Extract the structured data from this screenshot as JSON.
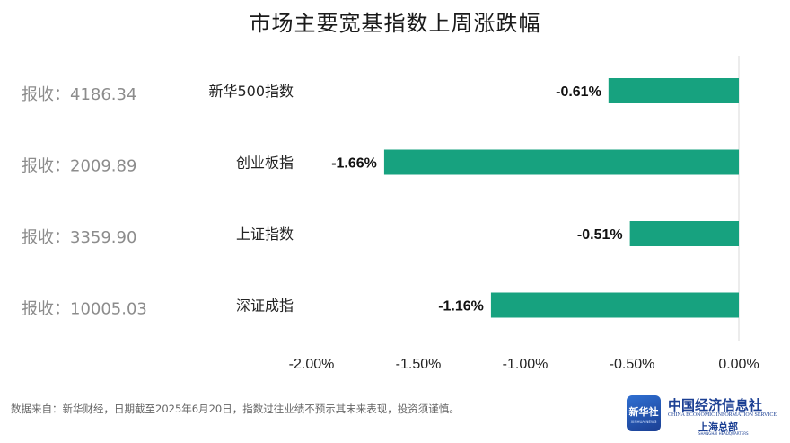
{
  "chart_data": {
    "type": "bar",
    "orientation": "horizontal",
    "title": "市场主要宽基指数上周涨跌幅",
    "categories": [
      "新华500指数",
      "创业板指",
      "上证指数",
      "深证成指"
    ],
    "values": [
      -0.61,
      -1.66,
      -0.51,
      -1.16
    ],
    "value_labels": [
      "-0.61%",
      "-1.66%",
      "-0.51%",
      "-1.16%"
    ],
    "closing_labels": [
      "报收：4186.34",
      "报收：2009.89",
      "报收：3359.90",
      "报收：10005.03"
    ],
    "xlim": [
      -2.0,
      0.0
    ],
    "xticks": [
      -2.0,
      -1.5,
      -1.0,
      -0.5,
      0.0
    ],
    "xtick_labels": [
      "-2.00%",
      "-1.50%",
      "-1.00%",
      "-0.50%",
      "0.00%"
    ],
    "grid": false,
    "bar_color": "#17a27f"
  },
  "footnote": "数据来自：新华财经，日期截至2025年6月20日，指数过往业绩不预示其未来表现，投资须谨慎。",
  "logo": {
    "badge_text": "新华社",
    "badge_sub": "XINHUA NEWS",
    "name_cn": "中国经济信息社",
    "name_en": "CHINA ECONOMIC INFORMATION SERVICE",
    "sub_cn": "上海总部",
    "sub_en": "SHANGHAI HEADQUARTERS"
  }
}
